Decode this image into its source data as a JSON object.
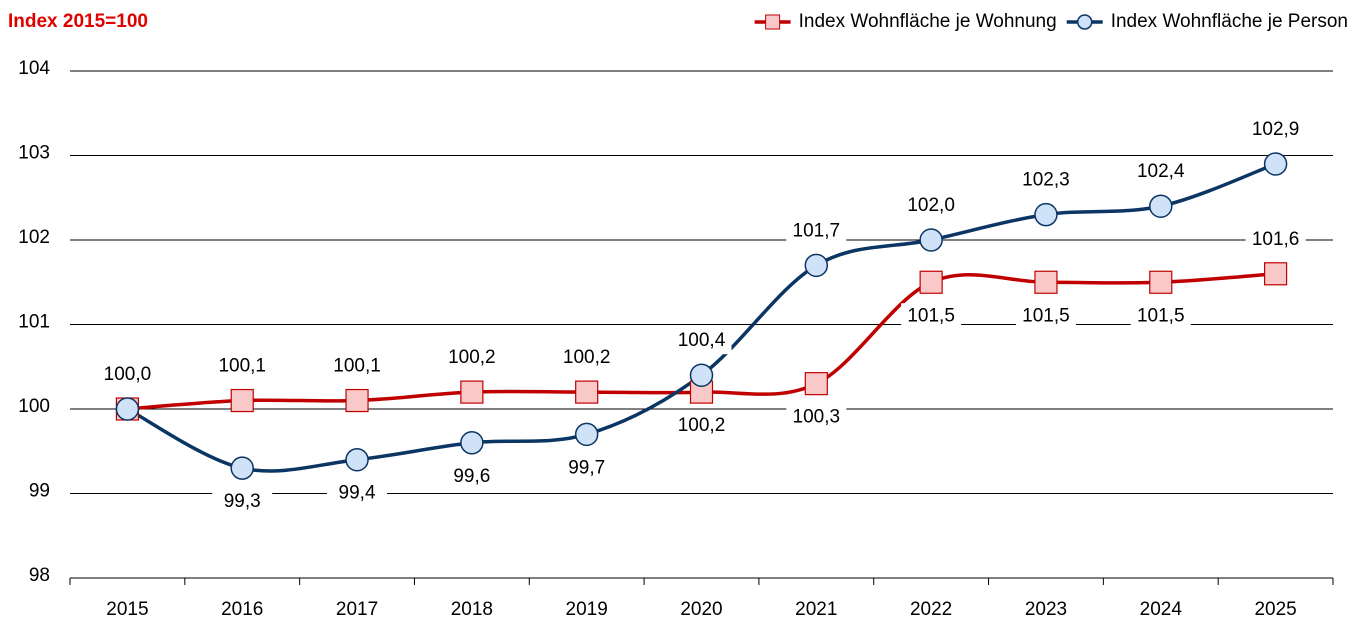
{
  "chart_data": {
    "type": "line",
    "y_label": "Index 2015=100",
    "categories": [
      "2015",
      "2016",
      "2017",
      "2018",
      "2019",
      "2020",
      "2021",
      "2022",
      "2023",
      "2024",
      "2025"
    ],
    "series": [
      {
        "name": "Index Wohnfläche je Wohnung",
        "color": "#c00000",
        "marker": "square",
        "marker_fill": "#f9c9c9",
        "values": [
          100.0,
          100.1,
          100.1,
          100.2,
          100.2,
          100.2,
          100.3,
          101.5,
          101.5,
          101.5,
          101.6
        ],
        "value_labels": [
          "100,0",
          "100,1",
          "100,1",
          "100,2",
          "100,2",
          "100,2",
          "100,3",
          "101,5",
          "101,5",
          "101,5",
          "101,6"
        ]
      },
      {
        "name": "Index Wohnfläche je Person",
        "color": "#0b3563",
        "marker": "circle",
        "marker_fill": "#cfe2f7",
        "values": [
          100.0,
          99.3,
          99.4,
          99.6,
          99.7,
          100.4,
          101.7,
          102.0,
          102.3,
          102.4,
          102.9
        ],
        "value_labels": [
          null,
          "99,3",
          "99,4",
          "99,6",
          "99,7",
          "100,4",
          "101,7",
          "102,0",
          "102,3",
          "102,4",
          "102,9"
        ]
      }
    ],
    "ylim": [
      98,
      104
    ],
    "yticks": [
      98,
      99,
      100,
      101,
      102,
      103,
      104
    ],
    "grid": true,
    "legend": "top-right"
  }
}
